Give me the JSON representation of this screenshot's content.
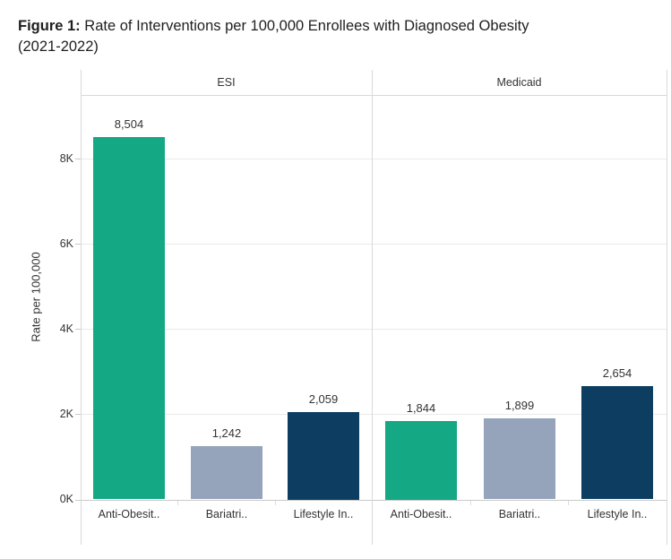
{
  "figure": {
    "title_prefix": "Figure 1:",
    "title_line1": "Rate of Interventions per 100,000 Enrollees with Diagnosed Obesity",
    "title_line2": "(2021-2022)"
  },
  "chart_data": {
    "type": "bar",
    "title": "Figure 1: Rate of Interventions per 100,000 Enrollees with Diagnosed Obesity (2021-2022)",
    "panels": [
      "ESI",
      "Medicaid"
    ],
    "categories": [
      "Anti-Obesit..",
      "Bariatri..",
      "Lifestyle In.."
    ],
    "series": [
      {
        "name": "ESI",
        "values": [
          8504,
          1242,
          2059
        ],
        "labels": [
          "8,504",
          "1,242",
          "2,059"
        ]
      },
      {
        "name": "Medicaid",
        "values": [
          1844,
          1899,
          2654
        ],
        "labels": [
          "1,844",
          "1,899",
          "2,654"
        ]
      }
    ],
    "xlabel": "",
    "ylabel": "Rate per 100,000",
    "yticks": [
      {
        "value": 0,
        "label": "0K"
      },
      {
        "value": 2000,
        "label": "2K"
      },
      {
        "value": 4000,
        "label": "4K"
      },
      {
        "value": 6000,
        "label": "6K"
      },
      {
        "value": 8000,
        "label": "8K"
      }
    ],
    "ylim": [
      0,
      9500
    ],
    "grid": true,
    "legend": "none",
    "bar_colors": [
      "#14A884",
      "#95A3BB",
      "#0D3E62"
    ]
  },
  "colors": {
    "teal": "#14A884",
    "slate_blue": "#95A3BB",
    "navy": "#0D3E62",
    "border": "#D9D9D9",
    "gridline": "#EAEAEA",
    "axis_line": "#C9C9C9",
    "text": "#333333",
    "title_text": "#1F1F1F",
    "background": "#FFFFFF"
  }
}
